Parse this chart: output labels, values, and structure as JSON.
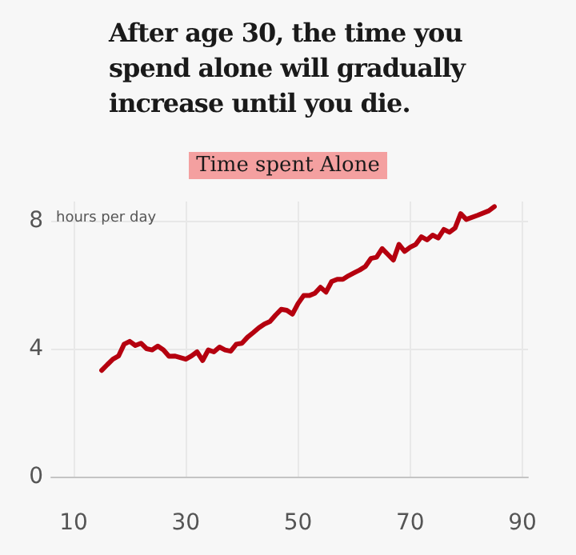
{
  "chart_data": {
    "type": "line",
    "title": "After age 30, the time you spend alone will gradually increase until you die.",
    "subtitle": "Time spent Alone",
    "ylabel": "hours per day",
    "x": [
      15,
      16,
      17,
      18,
      19,
      20,
      21,
      22,
      23,
      24,
      25,
      26,
      27,
      28,
      29,
      30,
      31,
      32,
      33,
      34,
      35,
      36,
      37,
      38,
      39,
      40,
      41,
      42,
      43,
      44,
      45,
      46,
      47,
      48,
      49,
      50,
      51,
      52,
      53,
      54,
      55,
      56,
      57,
      58,
      59,
      60,
      61,
      62,
      63,
      64,
      65,
      66,
      67,
      68,
      69,
      70,
      71,
      72,
      73,
      74,
      75,
      76,
      77,
      78,
      79,
      80,
      82,
      84,
      85
    ],
    "series": [
      {
        "color": "#b5000f",
        "values": [
          3.32,
          3.5,
          3.67,
          3.77,
          4.14,
          4.23,
          4.1,
          4.17,
          4.0,
          3.96,
          4.08,
          3.96,
          3.76,
          3.77,
          3.72,
          3.67,
          3.77,
          3.9,
          3.63,
          3.96,
          3.9,
          4.05,
          3.96,
          3.92,
          4.14,
          4.17,
          4.36,
          4.5,
          4.65,
          4.77,
          4.85,
          5.05,
          5.23,
          5.2,
          5.08,
          5.41,
          5.66,
          5.66,
          5.73,
          5.92,
          5.77,
          6.1,
          6.17,
          6.17,
          6.28,
          6.37,
          6.46,
          6.57,
          6.82,
          6.86,
          7.13,
          6.95,
          6.77,
          7.26,
          7.04,
          7.17,
          7.26,
          7.5,
          7.4,
          7.55,
          7.46,
          7.73,
          7.64,
          7.77,
          8.22,
          8.04,
          8.17,
          8.31,
          8.44
        ]
      }
    ],
    "xlim": [
      6,
      91
    ],
    "xticks": [
      10,
      30,
      50,
      70,
      90
    ],
    "ylim": [
      0,
      8.6
    ],
    "yticks": [
      0,
      4,
      8
    ],
    "grid": true,
    "marker": "none",
    "line_style": "solid"
  }
}
